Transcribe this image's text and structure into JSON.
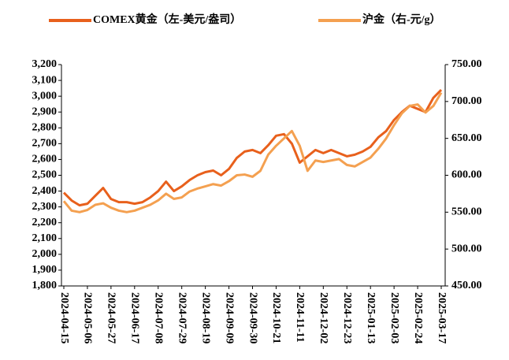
{
  "chart_data": {
    "type": "line",
    "categories": [
      "2024-04-15",
      null,
      null,
      "2024-05-06",
      null,
      null,
      "2024-05-27",
      null,
      null,
      "2024-06-17",
      null,
      null,
      "2024-07-08",
      null,
      null,
      "2024-07-29",
      null,
      null,
      "2024-08-19",
      null,
      null,
      "2024-09-09",
      null,
      null,
      "2024-09-30",
      null,
      null,
      "2024-10-21",
      null,
      null,
      "2024-11-11",
      null,
      null,
      "2024-12-02",
      null,
      null,
      "2024-12-23",
      null,
      null,
      "2025-01-13",
      null,
      null,
      "2025-02-03",
      null,
      null,
      "2025-02-24",
      null,
      null,
      "2025-03-17"
    ],
    "series": [
      {
        "name": "COMEX黄金（左-美元/盎司）",
        "color": "#e8601c",
        "values": [
          2390,
          2340,
          2310,
          2320,
          2370,
          2420,
          2350,
          2330,
          2330,
          2320,
          2330,
          2360,
          2400,
          2460,
          2400,
          2430,
          2470,
          2500,
          2520,
          2530,
          2500,
          2540,
          2610,
          2650,
          2660,
          2640,
          2690,
          2750,
          2760,
          2700,
          2580,
          2620,
          2660,
          2640,
          2660,
          2640,
          2620,
          2630,
          2650,
          2680,
          2740,
          2780,
          2850,
          2900,
          2940,
          2920,
          2900,
          2990,
          3040
        ]
      },
      {
        "name": "沪金（右-元/g）",
        "color": "#f4a050",
        "axis": "y2",
        "values": [
          565,
          552,
          550,
          553,
          560,
          562,
          556,
          552,
          550,
          552,
          556,
          560,
          566,
          575,
          568,
          570,
          578,
          582,
          585,
          588,
          586,
          592,
          600,
          601,
          598,
          606,
          628,
          640,
          650,
          660,
          640,
          606,
          620,
          618,
          620,
          622,
          614,
          612,
          618,
          624,
          636,
          650,
          668,
          684,
          694,
          696,
          685,
          694,
          712
        ]
      }
    ],
    "ylim": [
      1800,
      3200
    ],
    "yticks": [
      {
        "value": 1800,
        "label": "1,800"
      },
      {
        "value": 1900,
        "label": "1,900"
      },
      {
        "value": 2000,
        "label": "2,000"
      },
      {
        "value": 2100,
        "label": "2,100"
      },
      {
        "value": 2200,
        "label": "2,200"
      },
      {
        "value": 2300,
        "label": "2,300"
      },
      {
        "value": 2400,
        "label": "2,400"
      },
      {
        "value": 2500,
        "label": "2,500"
      },
      {
        "value": 2600,
        "label": "2,600"
      },
      {
        "value": 2700,
        "label": "2,700"
      },
      {
        "value": 2800,
        "label": "2,800"
      },
      {
        "value": 2900,
        "label": "2,900"
      },
      {
        "value": 3000,
        "label": "3,000"
      },
      {
        "value": 3100,
        "label": "3,100"
      },
      {
        "value": 3200,
        "label": "3,200"
      }
    ],
    "y2lim": [
      450,
      750
    ],
    "y2ticks": [
      {
        "value": 450,
        "label": "450.00"
      },
      {
        "value": 500,
        "label": "500.00"
      },
      {
        "value": 550,
        "label": "550.00"
      },
      {
        "value": 600,
        "label": "600.00"
      },
      {
        "value": 650,
        "label": "650.00"
      },
      {
        "value": 700,
        "label": "700.00"
      },
      {
        "value": 750,
        "label": "750.00"
      }
    ],
    "legend": "top"
  }
}
